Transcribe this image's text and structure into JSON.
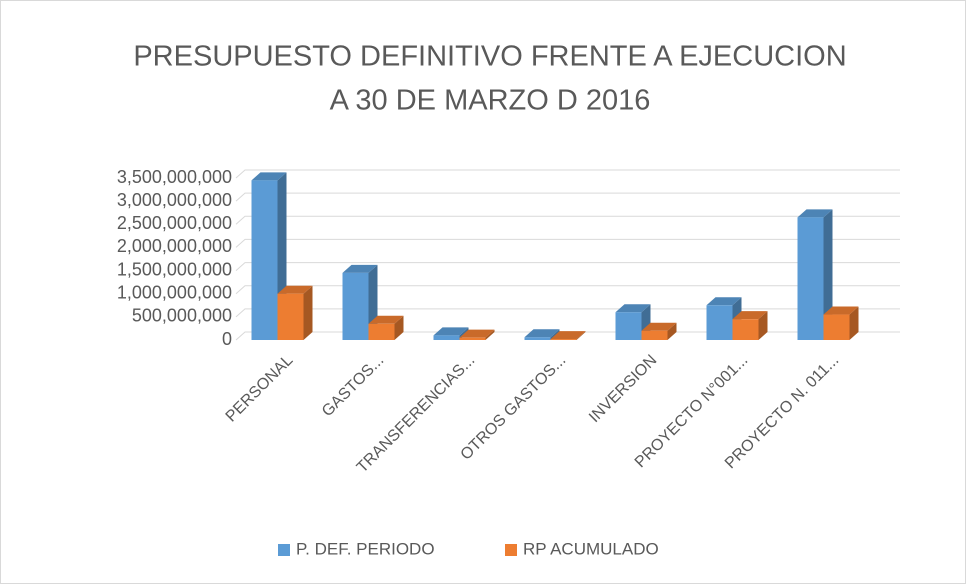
{
  "chart_data": {
    "type": "bar3d",
    "title": [
      "PRESUPUESTO DEFINITIVO FRENTE A EJECUCION",
      "A 30 DE MARZO D 2016"
    ],
    "categories": [
      "PERSONAL",
      "GASTOS...",
      "TRANSFERENCIAS...",
      "OTROS GASTOS...",
      "INVERSION",
      "PROYECTO  N°001...",
      "PROYECTO  N. 011..."
    ],
    "series": [
      {
        "name": "P. DEF. PERIODO",
        "color": "#5b9bd5",
        "values": [
          3450000000,
          1450000000,
          100000000,
          60000000,
          600000000,
          750000000,
          2650000000
        ]
      },
      {
        "name": "RP ACUMULADO",
        "color": "#ed7d31",
        "values": [
          1000000000,
          350000000,
          50000000,
          20000000,
          200000000,
          450000000,
          550000000
        ]
      }
    ],
    "ylim": [
      0,
      3500000000
    ],
    "yticks": [
      0,
      {
        "value": 500000000,
        "label": "500,000,000"
      },
      {
        "value": 1000000000,
        "label": "1,000,000,000"
      },
      {
        "value": 1500000000,
        "label": "1,500,000,000"
      },
      {
        "value": 2000000000,
        "label": "2,000,000,000"
      },
      {
        "value": 2500000000,
        "label": "2,500,000,000"
      },
      {
        "value": 3000000000,
        "label": "3,000,000,000"
      },
      {
        "value": 3500000000,
        "label": "3,500,000,000"
      }
    ],
    "grid": true,
    "legend": "bottom"
  }
}
